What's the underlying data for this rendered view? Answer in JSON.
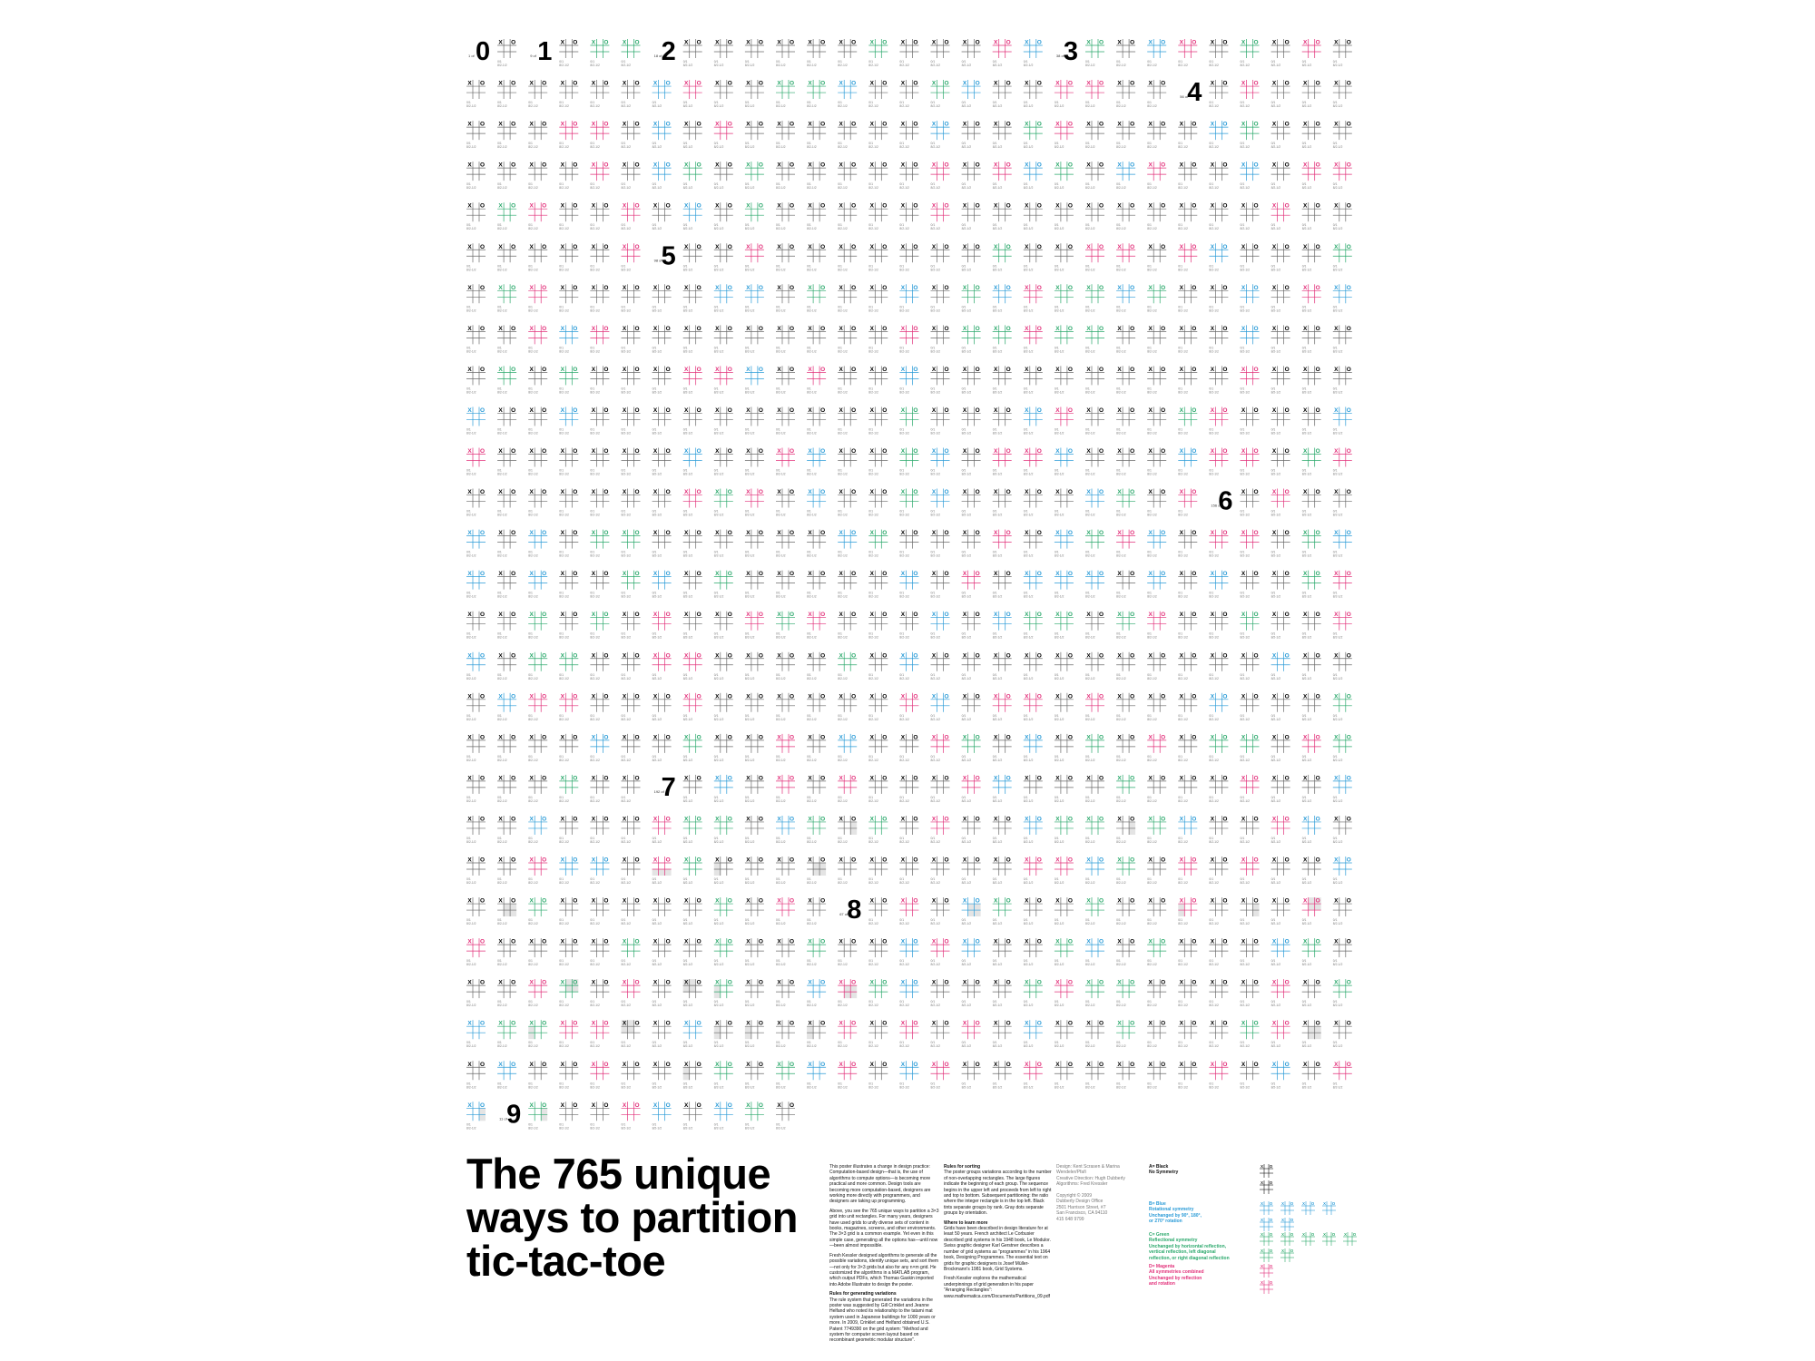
{
  "poster": {
    "title_lines": [
      "The 765 unique",
      "ways to partition",
      "tic-tac-toe"
    ]
  },
  "grid": {
    "columns": 29,
    "rows": 27,
    "total_cells": 765,
    "mark_x": "X",
    "mark_o": "O",
    "cell_caption_top": "0/1",
    "cell_caption_bottom": "8/2-1/2"
  },
  "section_markers": [
    {
      "number": "0",
      "label": "1 of",
      "index": 0
    },
    {
      "number": "1",
      "label": "9 of",
      "index": 2
    },
    {
      "number": "2",
      "label": "18 of",
      "index": 6
    },
    {
      "number": "3",
      "label": "38 of",
      "index": 19
    },
    {
      "number": "4",
      "label": "56 of",
      "index": 52
    },
    {
      "number": "5",
      "label": "98 of",
      "index": 151
    },
    {
      "number": "6",
      "label": "156 of",
      "index": 343
    },
    {
      "number": "7",
      "label": "192 of",
      "index": 528
    },
    {
      "number": "8",
      "label": "67 of",
      "index": 621
    },
    {
      "number": "9",
      "label": "11 of",
      "index": 755
    }
  ],
  "text": {
    "col1": [
      "This poster illustrates a change in design practice: Computation-based design—that is, the use of algorithms to compute options—is becoming more practical and more common. Design tools are becoming more computation-based, designers are working more directly with programmers, and designers are taking up programming.",
      "Above, you see the 765 unique ways to partition a 3×3 grid into unit rectangles. For many years, designers have used grids to unify diverse sets of content in books, magazines, screens, and other environments. The 3×3 grid is a common example. Yet even in this simple case, generating all the options has—until now—been almost impossible.",
      "Fresh Kessler designed algorithms to generate all the possible variations, identify unique sets, and sort them—not only for 3×3 grids but also for any n×m grid. He customized the algorithms in a MATLAB program, which output PDFs, which Thomas Gaskin imported into Adobe Illustrator to design the poster.",
      "Rules for generating variations",
      "The rule system that generated the variations in the poster was suggested by Gill Crinklet and Jeanne Helfand who noted its relationship to the tatami mat system used in Japanese buildings for 1000 years or more. In 2009, Crinklet and Helfand obtained U.S. Patent 7749390 on the grid system: \"Method and system for computer screen layout based on recombinant geometric modular structure\"."
    ],
    "col2": [
      "Rules for sorting",
      "The poster groups variations according to the number of non-overlapping rectangles. The large figures indicate the beginning of each group. The sequence begins in the upper left and proceeds from left to right and top to bottom. Subsequent partitioning: the ratio where the integer rectangle is in the top left. Black tints separate groups by rank. Gray dots separate groups by orientation.",
      "Where to learn more",
      "Grids have been described in design literature for at least 50 years. French architect Le Corbusier described grid systems in his 1948 book, Le Modulor. Swiss graphic designer Karl Gerstner describes a number of grid systems as \"programmes\" in his 1964 book, Designing Programmes. The essential text on grids for graphic designers is Josef Müller-Brockmann's 1981 book, Grid Systems.",
      "Fresh Kessler explores the mathematical underpinnings of grid generation in his paper \"Arranging Rectangles\": www.mathematica.com/Documents/Partitions_09.pdf"
    ],
    "credits": [
      "Design: Kent Scrasen & Marina Wendeler/Pfafi",
      "Creative Direction: Hugh Dubberly",
      "Algorithms: Fred Kressler",
      "",
      "Copyright © 2009",
      "Dubberly Design Office",
      "2501 Harrison Street, #7",
      "San Francisco, CA 94110",
      "415 648 9799"
    ],
    "legend": [
      {
        "lines": [
          "A= Black",
          "No Symmetry"
        ],
        "color": "#111111",
        "key": "black"
      },
      {
        "lines": [
          "B= Blue",
          "Rotational symmetry",
          "Unchanged by 90°, 180°,",
          "or 270° rotation"
        ],
        "color": "#2a9bd7",
        "key": "blue"
      },
      {
        "lines": [
          "C= Green",
          "Reflectional symmetry",
          "Unchanged by horizontal reflection,",
          "vertical reflection, left diagonal",
          "reflection, or right diagonal reflection"
        ],
        "color": "#2aa86b",
        "key": "green"
      },
      {
        "lines": [
          "D= Magenta",
          "All symmetries combined",
          "Unchanged by reflection",
          "and rotation"
        ],
        "color": "#e2307a",
        "key": "magenta"
      }
    ]
  },
  "colors": {
    "black": "#111111",
    "blue": "#2a9bd7",
    "green": "#2aa86b",
    "magenta": "#e2307a",
    "grid_line": "#6a6a6a",
    "caption": "#7a7a7a",
    "shade": "#e4e4e4"
  }
}
